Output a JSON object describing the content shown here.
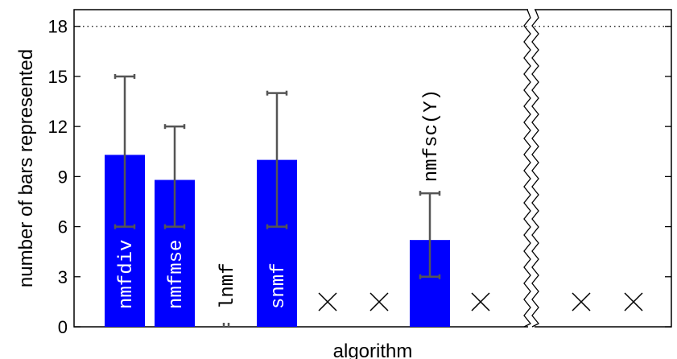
{
  "chart_data": {
    "type": "bar",
    "xlabel": "algorithm",
    "ylabel": "number of bars represented",
    "ylim": [
      0,
      19
    ],
    "yticks": [
      0,
      3,
      6,
      9,
      12,
      15,
      18
    ],
    "reference_line": 18,
    "categories": [
      "nmfdiv",
      "nmfmse",
      "lnmf",
      "snmf",
      "",
      "",
      "nmfsc(Y)",
      "",
      "",
      ""
    ],
    "values": [
      10.3,
      8.8,
      0,
      10.0,
      null,
      null,
      5.2,
      null,
      null,
      null
    ],
    "error_low": [
      6,
      6,
      0,
      6,
      null,
      null,
      3,
      null,
      null,
      null
    ],
    "error_high": [
      15,
      12,
      0,
      14,
      null,
      null,
      8,
      null,
      null,
      null
    ],
    "missing_markers": [
      "×",
      "×",
      "×",
      "×",
      "×"
    ],
    "bar_color": "#0000ff",
    "errorbar_color": "#555555",
    "axis_break": true
  }
}
